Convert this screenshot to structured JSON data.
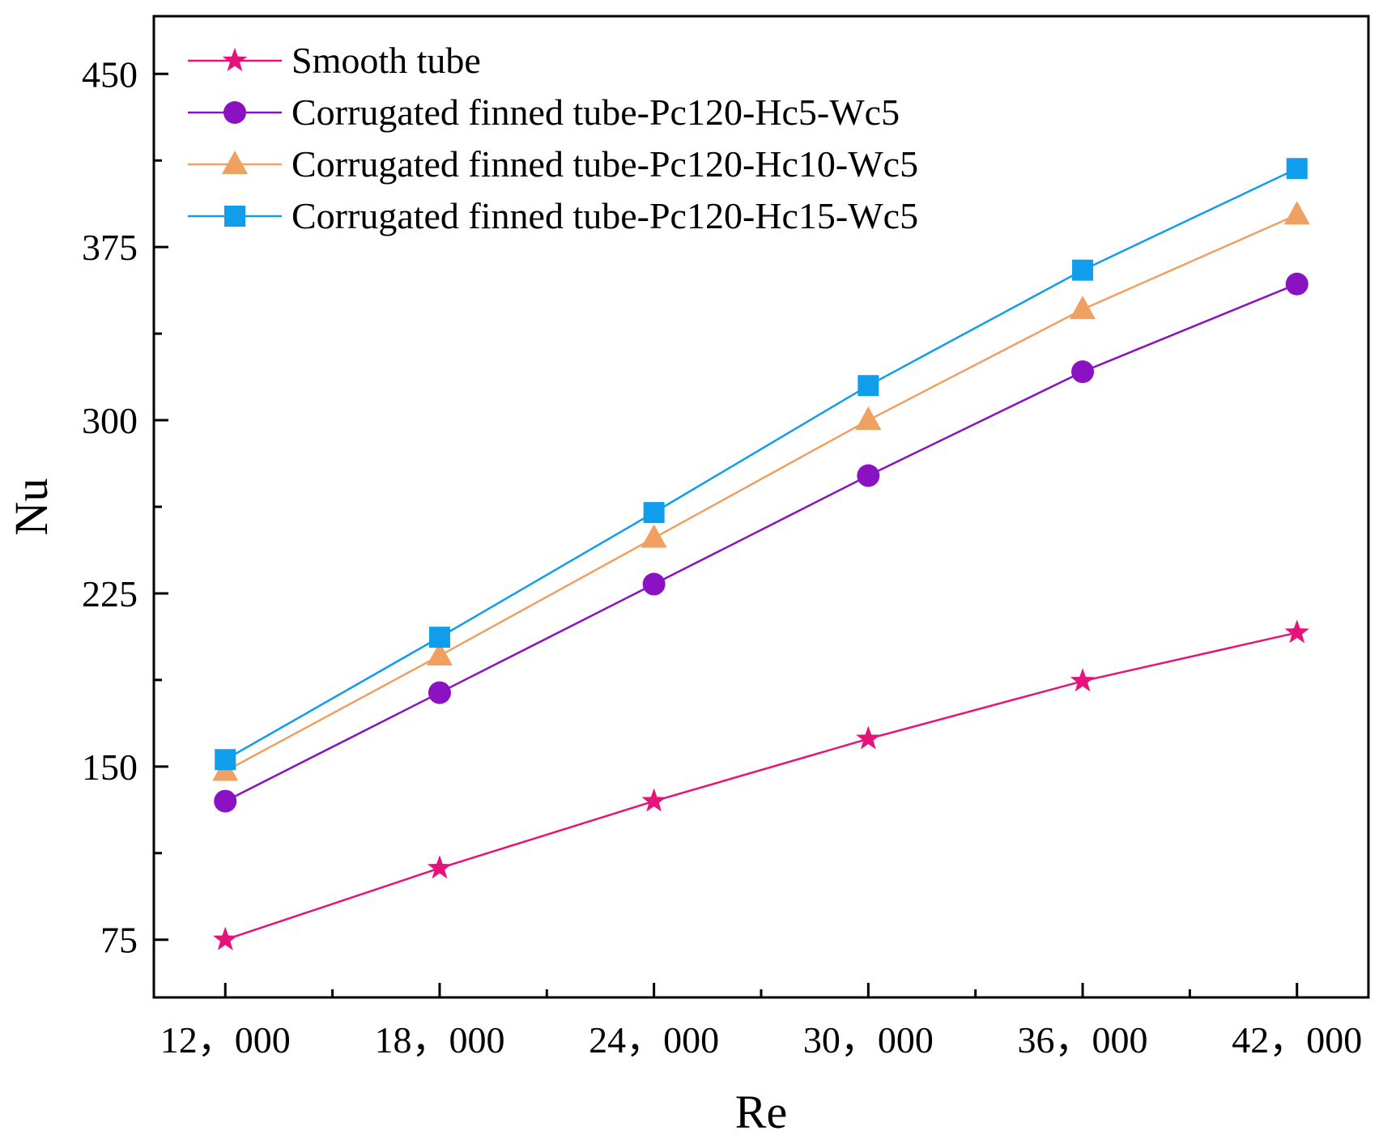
{
  "chart_data": {
    "type": "line",
    "title": "",
    "xlabel": "Re",
    "ylabel": "Nu",
    "x": [
      12000,
      18000,
      24000,
      30000,
      36000,
      42000
    ],
    "x_tick_labels": [
      "12，000",
      "18，000",
      "24，000",
      "30，000",
      "36，000",
      "42，000"
    ],
    "xlim": [
      10000,
      44000
    ],
    "ylim": [
      50,
      475
    ],
    "y_ticks": [
      75,
      150,
      225,
      300,
      375,
      450
    ],
    "y_tick_labels": [
      "75",
      "150",
      "225",
      "300",
      "375",
      "450"
    ],
    "grid": false,
    "legend_position": "top-left",
    "series": [
      {
        "name": "Smooth tube",
        "marker": "star",
        "color": "#E6137A",
        "values": [
          75,
          106,
          135,
          162,
          187,
          208
        ]
      },
      {
        "name": "Corrugated finned tube-Pc120-Hc5-Wc5",
        "marker": "circle",
        "color": "#8A12C2",
        "values": [
          135,
          182,
          229,
          276,
          321,
          359
        ]
      },
      {
        "name": "Corrugated finned tube-Pc120-Hc10-Wc5",
        "marker": "triangle",
        "color": "#F0A060",
        "values": [
          148,
          198,
          249,
          300,
          348,
          389
        ]
      },
      {
        "name": "Corrugated finned tube-Pc120-Hc15-Wc5",
        "marker": "square",
        "color": "#109DEB",
        "values": [
          153,
          206,
          260,
          315,
          365,
          409
        ]
      }
    ]
  }
}
